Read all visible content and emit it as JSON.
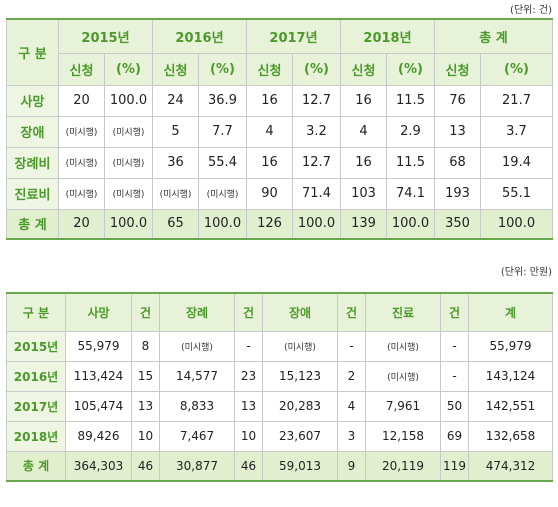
{
  "table1": {
    "unit": "(단위: 건)",
    "corner": "구 분",
    "years": [
      "2015년",
      "2016년",
      "2017년",
      "2018년",
      "총 계"
    ],
    "sub": [
      "신청",
      "(%)"
    ],
    "rows": [
      {
        "label": "사망",
        "cells": [
          "20",
          "100.0",
          "24",
          "36.9",
          "16",
          "12.7",
          "16",
          "11.5",
          "76",
          "21.7"
        ]
      },
      {
        "label": "장애",
        "cells": [
          "(미시행)",
          "(미시행)",
          "5",
          "7.7",
          "4",
          "3.2",
          "4",
          "2.9",
          "13",
          "3.7"
        ]
      },
      {
        "label": "장례비",
        "cells": [
          "(미시행)",
          "(미시행)",
          "36",
          "55.4",
          "16",
          "12.7",
          "16",
          "11.5",
          "68",
          "19.4"
        ]
      },
      {
        "label": "진료비",
        "cells": [
          "(미시행)",
          "(미시행)",
          "(미시행)",
          "(미시행)",
          "90",
          "71.4",
          "103",
          "74.1",
          "193",
          "55.1"
        ]
      }
    ],
    "total": {
      "label": "총 계",
      "cells": [
        "20",
        "100.0",
        "65",
        "100.0",
        "126",
        "100.0",
        "139",
        "100.0",
        "350",
        "100.0"
      ]
    }
  },
  "table2": {
    "unit": "(단위: 만원)",
    "headers": [
      "구 분",
      "사망",
      "건",
      "장례",
      "건",
      "장애",
      "건",
      "진료",
      "건",
      "계"
    ],
    "rows": [
      {
        "label": "2015년",
        "cells": [
          "55,979",
          "8",
          "(미시행)",
          "-",
          "(미시행)",
          "-",
          "(미시행)",
          "-",
          "55,979"
        ]
      },
      {
        "label": "2016년",
        "cells": [
          "113,424",
          "15",
          "14,577",
          "23",
          "15,123",
          "2",
          "(미시행)",
          "-",
          "143,124"
        ]
      },
      {
        "label": "2017년",
        "cells": [
          "105,474",
          "13",
          "8,833",
          "13",
          "20,283",
          "4",
          "7,961",
          "50",
          "142,551"
        ]
      },
      {
        "label": "2018년",
        "cells": [
          "89,426",
          "10",
          "7,467",
          "10",
          "23,607",
          "3",
          "12,158",
          "69",
          "132,658"
        ]
      }
    ],
    "total": {
      "label": "총 계",
      "cells": [
        "364,303",
        "46",
        "30,877",
        "46",
        "59,013",
        "9",
        "20,119",
        "119",
        "474,312"
      ]
    }
  }
}
